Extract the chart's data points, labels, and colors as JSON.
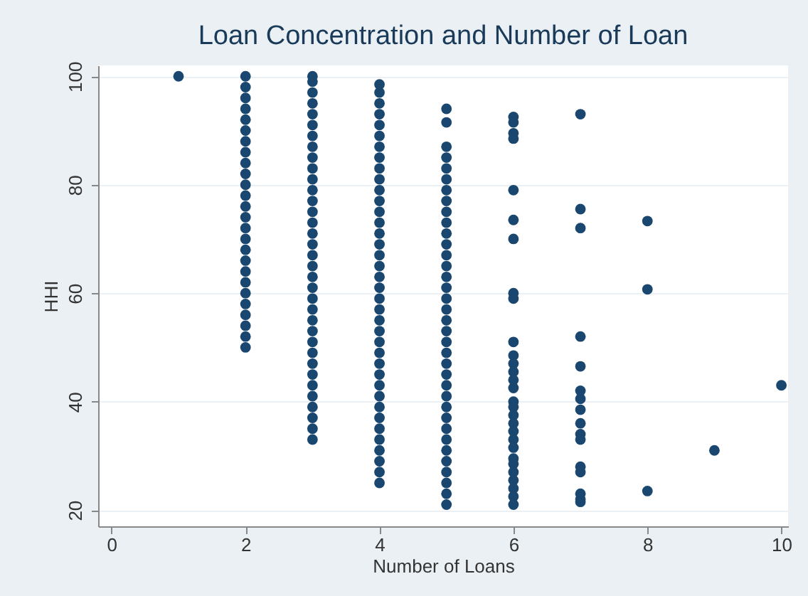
{
  "chart_data": {
    "type": "scatter",
    "title": "Loan Concentration and Number of Loan",
    "xlabel": "Number of Loans",
    "ylabel": "HHI",
    "xlim": [
      -0.2,
      10.1
    ],
    "ylim": [
      17,
      102
    ],
    "xticks": [
      0,
      2,
      4,
      6,
      8,
      10
    ],
    "yticks": [
      20,
      40,
      60,
      80,
      100
    ],
    "grid": "y",
    "marker": "circle",
    "series": [
      {
        "color": "#1a476f",
        "x": [
          1,
          2,
          2,
          2,
          2,
          2,
          2,
          2,
          2,
          2,
          2,
          2,
          2,
          2,
          2,
          2,
          2,
          2,
          2,
          2,
          2,
          2,
          2,
          2,
          2,
          2,
          2,
          3,
          3,
          3,
          3,
          3,
          3,
          3,
          3,
          3,
          3,
          3,
          3,
          3,
          3,
          3,
          3,
          3,
          3,
          3,
          3,
          3,
          3,
          3,
          3,
          3,
          3,
          3,
          3,
          3,
          3,
          3,
          3,
          3,
          3,
          3,
          4,
          4,
          4,
          4,
          4,
          4,
          4,
          4,
          4,
          4,
          4,
          4,
          4,
          4,
          4,
          4,
          4,
          4,
          4,
          4,
          4,
          4,
          4,
          4,
          4,
          4,
          4,
          4,
          4,
          4,
          4,
          4,
          4,
          4,
          4,
          4,
          4,
          4,
          5,
          5,
          5,
          5,
          5,
          5,
          5,
          5,
          5,
          5,
          5,
          5,
          5,
          5,
          5,
          5,
          5,
          5,
          5,
          5,
          5,
          5,
          5,
          5,
          5,
          5,
          5,
          5,
          5,
          5,
          5,
          5,
          5,
          5,
          5,
          5,
          6,
          6,
          6,
          6,
          6,
          6,
          6,
          6,
          6,
          6,
          6,
          6,
          6,
          6,
          6,
          6,
          6,
          6,
          6,
          6,
          6,
          6,
          6,
          6,
          6,
          6,
          6,
          6,
          6,
          7,
          7,
          7,
          7,
          7,
          7,
          7,
          7,
          7,
          7,
          7,
          7,
          7,
          7,
          7,
          7,
          8,
          8,
          8,
          9,
          10
        ],
        "values": [
          100,
          50,
          52,
          54,
          56,
          58,
          60,
          62,
          64,
          66,
          68,
          70,
          72,
          74,
          76,
          78,
          80,
          82,
          84,
          86,
          88,
          90,
          92,
          94,
          96,
          98,
          100,
          33,
          35,
          37,
          39,
          41,
          43,
          45,
          47,
          49,
          51,
          53,
          55,
          57,
          59,
          61,
          63,
          65,
          67,
          69,
          71,
          73,
          75,
          77,
          79,
          81,
          83,
          85,
          87,
          89,
          91,
          93,
          95,
          97,
          99,
          100,
          25,
          27,
          29,
          31,
          33,
          35,
          37,
          39,
          41,
          43,
          45,
          47,
          49,
          51,
          53,
          55,
          57,
          59,
          61,
          63,
          65,
          67,
          69,
          71,
          73,
          75,
          77,
          79,
          81,
          83,
          85,
          87,
          89,
          91,
          93,
          95,
          97,
          98.5,
          21,
          23,
          25,
          27,
          29,
          31,
          33,
          35,
          37,
          39,
          41,
          43,
          45,
          47,
          49,
          51,
          53,
          55,
          57,
          59,
          61,
          63,
          65,
          67,
          69,
          71,
          73,
          75,
          77,
          79,
          81,
          83,
          85,
          87,
          91.5,
          94,
          92.5,
          91.5,
          89.5,
          88.5,
          79,
          73.5,
          70,
          60,
          59,
          51,
          48.5,
          47,
          45.5,
          44,
          42.5,
          40,
          39,
          37.5,
          36,
          34.5,
          33,
          31.5,
          29.5,
          28.5,
          27,
          25.5,
          24,
          22.5,
          21,
          93,
          75.5,
          72,
          52,
          46.5,
          42,
          40.5,
          38.5,
          36,
          34,
          33,
          28,
          27,
          23,
          22,
          21.5,
          73.3,
          60.7,
          23.5,
          31,
          43
        ]
      }
    ]
  }
}
